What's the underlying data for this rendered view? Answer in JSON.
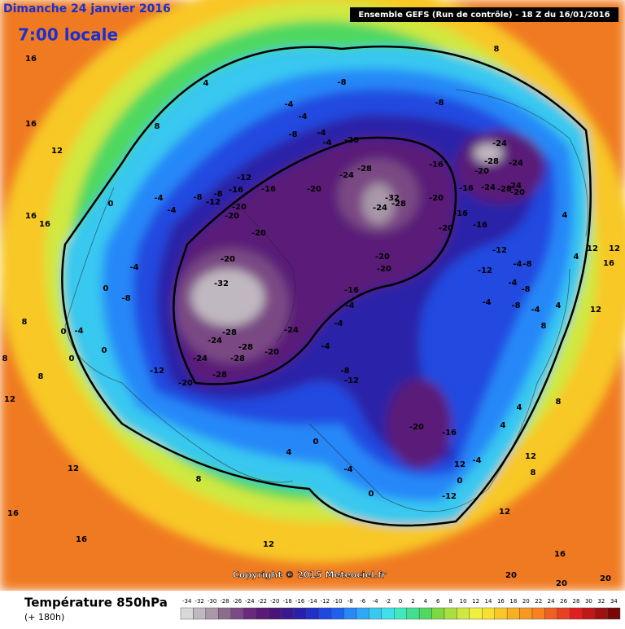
{
  "header": {
    "date": "Dimanche 24 janvier 2016",
    "time": "7:00 locale",
    "run": "Ensemble GEFS  (Run de contrôle)  - 18 Z du 16/01/2016"
  },
  "copyright": "Copyright © 2015 Meteociel.fr",
  "legend": {
    "title": "Température 850hPa",
    "subtitle": "(+ 180h)",
    "ticks": [
      -34,
      -32,
      -30,
      -28,
      -26,
      -24,
      -22,
      -20,
      -18,
      -16,
      -14,
      -12,
      -10,
      -8,
      -6,
      -4,
      -2,
      0,
      2,
      4,
      6,
      8,
      10,
      12,
      14,
      16,
      18,
      20,
      22,
      24,
      26,
      28,
      30,
      32,
      34
    ],
    "colors": [
      "#d8d8d8",
      "#c0b8c0",
      "#a898a8",
      "#8c6c8c",
      "#7a4a84",
      "#6a2a7c",
      "#5a1a78",
      "#4a1478",
      "#3a1890",
      "#2a20a8",
      "#2030c8",
      "#2048e0",
      "#2060f0",
      "#2888f8",
      "#30a8f8",
      "#38c8f0",
      "#40e0e8",
      "#40e8c0",
      "#40e090",
      "#50d860",
      "#80d840",
      "#a8e040",
      "#d0e840",
      "#f0f040",
      "#f8e030",
      "#f8c828",
      "#f8b020",
      "#f89820",
      "#f88020",
      "#f06020",
      "#e84020",
      "#e02020",
      "#c01818",
      "#a01010",
      "#780808"
    ]
  },
  "contour_labels": [
    "-8",
    "-8",
    "-4",
    "-4",
    "-8",
    "-4",
    "-4",
    "-20",
    "-24",
    "-28",
    "-16",
    "-20",
    "-24",
    "-28",
    "-24",
    "-24",
    "-24",
    "-16",
    "-28",
    "-20",
    "-20",
    "-32",
    "-24",
    "-28",
    "-16",
    "-16",
    "-20",
    "-20",
    "-16",
    "-12",
    "-16",
    "-8",
    "-12",
    "-20",
    "-20",
    "-8",
    "-4",
    "-4",
    "0",
    "-20",
    "-20",
    "-20",
    "-20",
    "-32",
    "-24",
    "-28",
    "-28",
    "-24",
    "-24",
    "-28",
    "-20",
    "-28",
    "-20",
    "-12",
    "-16",
    "-4",
    "-8",
    "-12",
    "-4",
    "-20",
    "-16",
    "-12",
    "-4",
    "0",
    "-12",
    "-12",
    "-4",
    "-8",
    "-4",
    "-8",
    "-4",
    "-8",
    "-4",
    "4",
    "8",
    "12",
    "12",
    "12",
    "16",
    "4",
    "4",
    "8",
    "16",
    "16",
    "8",
    "12",
    "4",
    "16",
    "16",
    "12",
    "16",
    "16",
    "12",
    "8",
    "4",
    "0",
    "20",
    "20",
    "20",
    "16",
    "12",
    "12",
    "8",
    "12",
    "4",
    "-4",
    "0",
    "4",
    "8",
    "-8",
    "-4",
    "0",
    "8",
    "0",
    "0",
    "0",
    "-4",
    "8",
    "12",
    "8",
    "-4"
  ]
}
